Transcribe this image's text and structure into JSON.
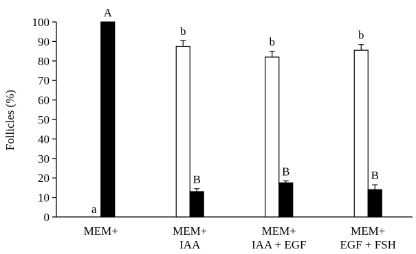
{
  "chart_data": {
    "type": "bar",
    "ylabel": "Follicles (%)",
    "ylim": [
      0,
      100
    ],
    "yticks": [
      0,
      10,
      20,
      30,
      40,
      50,
      60,
      70,
      80,
      90,
      100
    ],
    "categories": [
      {
        "line1": "MEM+",
        "line2": ""
      },
      {
        "line1": "MEM+",
        "line2": "IAA"
      },
      {
        "line1": "MEM+",
        "line2": "IAA + EGF"
      },
      {
        "line1": "MEM+",
        "line2": "EGF + FSH"
      }
    ],
    "series": [
      {
        "fill": "#ffffff",
        "values": [
          0,
          87.5,
          82,
          85.5
        ],
        "errors": [
          0,
          3,
          3,
          3
        ],
        "letters": [
          "a",
          "b",
          "b",
          "b"
        ]
      },
      {
        "fill": "#000000",
        "values": [
          100,
          13,
          17.5,
          14
        ],
        "errors": [
          0,
          1.5,
          1,
          2.5
        ],
        "letters": [
          "A",
          "B",
          "B",
          "B"
        ]
      }
    ],
    "grid": false,
    "legend": "none"
  }
}
